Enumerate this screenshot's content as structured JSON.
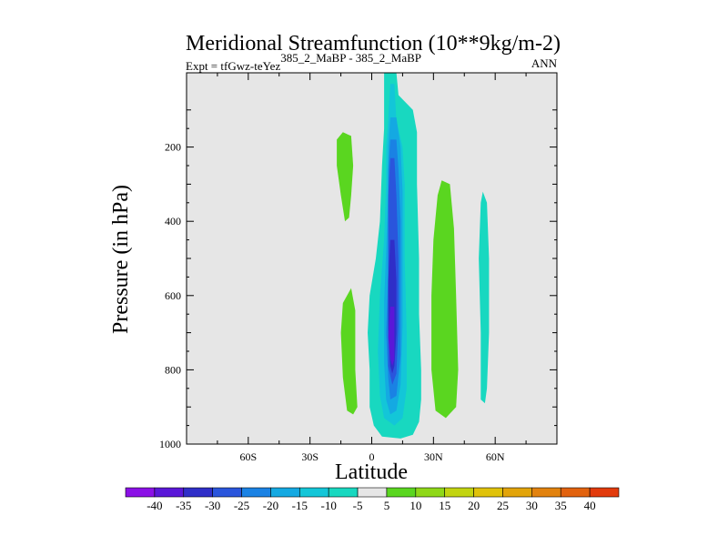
{
  "chart_data": {
    "type": "contour",
    "title": "Meridional Streamfunction (10**9kg/m-2)",
    "subtitle_left_prefix": "Expt = tfGwz-teYez",
    "subtitle_left_sup": "385_2_MaBP - 385_2_MaBP",
    "subtitle_right": "ANN",
    "xlabel": "Latitude",
    "ylabel": "Pressure (in hPa)",
    "xlim": [
      -90,
      90
    ],
    "ylim": [
      1000,
      0
    ],
    "xticks": [
      {
        "value": -60,
        "label": "60S"
      },
      {
        "value": -30,
        "label": "30S"
      },
      {
        "value": 0,
        "label": "0"
      },
      {
        "value": 30,
        "label": "30N"
      },
      {
        "value": 60,
        "label": "60N"
      }
    ],
    "yticks": [
      {
        "value": 200,
        "label": "200"
      },
      {
        "value": 400,
        "label": "400"
      },
      {
        "value": 600,
        "label": "600"
      },
      {
        "value": 800,
        "label": "800"
      },
      {
        "value": 1000,
        "label": "1000"
      }
    ],
    "background_color": "#e6e6e6",
    "colorbar": {
      "labels": [
        "-40",
        "-35",
        "-30",
        "-25",
        "-20",
        "-15",
        "-10",
        "-5",
        "5",
        "10",
        "15",
        "20",
        "25",
        "30",
        "35",
        "40"
      ],
      "colors": [
        "#8b10e6",
        "#5a17d8",
        "#2f2ec8",
        "#2a55dc",
        "#1a82e4",
        "#14a9e2",
        "#13c6d8",
        "#18d8c0",
        "#e6e6e6",
        "#5ad620",
        "#8fd818",
        "#c2d410",
        "#e0c20a",
        "#e2a40a",
        "#e2820e",
        "#e2620e",
        "#e23a0c"
      ]
    },
    "regions": [
      {
        "level": -5,
        "color": "#18d8c0",
        "points": [
          [
            6,
            0
          ],
          [
            12,
            0
          ],
          [
            13,
            60
          ],
          [
            20,
            100
          ],
          [
            22,
            160
          ],
          [
            22,
            300
          ],
          [
            23,
            500
          ],
          [
            23,
            650
          ],
          [
            24,
            800
          ],
          [
            24,
            880
          ],
          [
            23,
            940
          ],
          [
            20,
            975
          ],
          [
            14,
            985
          ],
          [
            5,
            980
          ],
          [
            1,
            950
          ],
          [
            -1,
            900
          ],
          [
            -1,
            800
          ],
          [
            -2,
            700
          ],
          [
            -1,
            600
          ],
          [
            2,
            500
          ],
          [
            4,
            400
          ],
          [
            5,
            250
          ],
          [
            6,
            150
          ],
          [
            6,
            100
          ],
          [
            6,
            40
          ]
        ]
      },
      {
        "level": -10,
        "color": "#13c6d8",
        "points": [
          [
            9,
            30
          ],
          [
            11,
            30
          ],
          [
            12,
            130
          ],
          [
            15,
            200
          ],
          [
            16,
            300
          ],
          [
            16,
            500
          ],
          [
            17,
            700
          ],
          [
            17,
            850
          ],
          [
            15,
            930
          ],
          [
            11,
            950
          ],
          [
            6,
            930
          ],
          [
            4,
            870
          ],
          [
            3,
            750
          ],
          [
            4,
            600
          ],
          [
            6,
            450
          ],
          [
            7,
            300
          ],
          [
            7,
            200
          ],
          [
            8,
            130
          ]
        ]
      },
      {
        "level": -15,
        "color": "#14a9e2",
        "points": [
          [
            9,
            120
          ],
          [
            12,
            120
          ],
          [
            14,
            200
          ],
          [
            15,
            320
          ],
          [
            15,
            500
          ],
          [
            15,
            680
          ],
          [
            14,
            840
          ],
          [
            12,
            910
          ],
          [
            9,
            920
          ],
          [
            7,
            880
          ],
          [
            6,
            780
          ],
          [
            6,
            620
          ],
          [
            7,
            480
          ],
          [
            8,
            320
          ],
          [
            8,
            200
          ]
        ]
      },
      {
        "level": -20,
        "color": "#1a82e4",
        "points": [
          [
            9,
            180
          ],
          [
            12,
            180
          ],
          [
            13,
            260
          ],
          [
            14,
            400
          ],
          [
            14,
            600
          ],
          [
            14,
            760
          ],
          [
            12,
            870
          ],
          [
            9,
            880
          ],
          [
            8,
            820
          ],
          [
            7,
            700
          ],
          [
            8,
            540
          ],
          [
            8,
            380
          ],
          [
            8,
            260
          ]
        ]
      },
      {
        "level": -25,
        "color": "#2a55dc",
        "points": [
          [
            9,
            230
          ],
          [
            11,
            230
          ],
          [
            12,
            330
          ],
          [
            13,
            500
          ],
          [
            13,
            680
          ],
          [
            12,
            810
          ],
          [
            10,
            840
          ],
          [
            8,
            790
          ],
          [
            8,
            640
          ],
          [
            8,
            480
          ],
          [
            8,
            330
          ]
        ]
      },
      {
        "level": -30,
        "color": "#2f2ec8",
        "points": [
          [
            9,
            450
          ],
          [
            11,
            450
          ],
          [
            12,
            560
          ],
          [
            12,
            700
          ],
          [
            11,
            790
          ],
          [
            10,
            810
          ],
          [
            9,
            790
          ],
          [
            8,
            690
          ],
          [
            8,
            560
          ]
        ]
      },
      {
        "level": -35,
        "color": "#5a17d8",
        "points": [
          [
            9,
            630
          ],
          [
            11,
            630
          ],
          [
            11,
            710
          ],
          [
            11,
            770
          ],
          [
            10,
            790
          ],
          [
            9,
            770
          ],
          [
            8,
            710
          ]
        ]
      },
      {
        "level": 5,
        "color": "#5ad620",
        "points": [
          [
            -17,
            180
          ],
          [
            -14,
            160
          ],
          [
            -10,
            170
          ],
          [
            -9,
            250
          ],
          [
            -10,
            330
          ],
          [
            -11,
            390
          ],
          [
            -13,
            400
          ],
          [
            -15,
            330
          ],
          [
            -17,
            250
          ]
        ]
      },
      {
        "level": 5,
        "color": "#5ad620",
        "points": [
          [
            -14,
            620
          ],
          [
            -10,
            580
          ],
          [
            -8,
            640
          ],
          [
            -8,
            800
          ],
          [
            -7,
            900
          ],
          [
            -9,
            920
          ],
          [
            -12,
            910
          ],
          [
            -14,
            820
          ],
          [
            -15,
            700
          ]
        ]
      },
      {
        "level": 5,
        "color": "#5ad620",
        "points": [
          [
            34,
            290
          ],
          [
            38,
            300
          ],
          [
            40,
            420
          ],
          [
            41,
            600
          ],
          [
            42,
            800
          ],
          [
            41,
            900
          ],
          [
            36,
            930
          ],
          [
            31,
            910
          ],
          [
            29,
            800
          ],
          [
            29,
            600
          ],
          [
            30,
            450
          ],
          [
            32,
            330
          ]
        ]
      },
      {
        "level": -5,
        "color": "#18d8c0",
        "points": [
          [
            54,
            320
          ],
          [
            56,
            350
          ],
          [
            57,
            500
          ],
          [
            57,
            700
          ],
          [
            56,
            850
          ],
          [
            55,
            890
          ],
          [
            53,
            880
          ],
          [
            53,
            700
          ],
          [
            52,
            500
          ],
          [
            53,
            350
          ]
        ]
      }
    ]
  }
}
